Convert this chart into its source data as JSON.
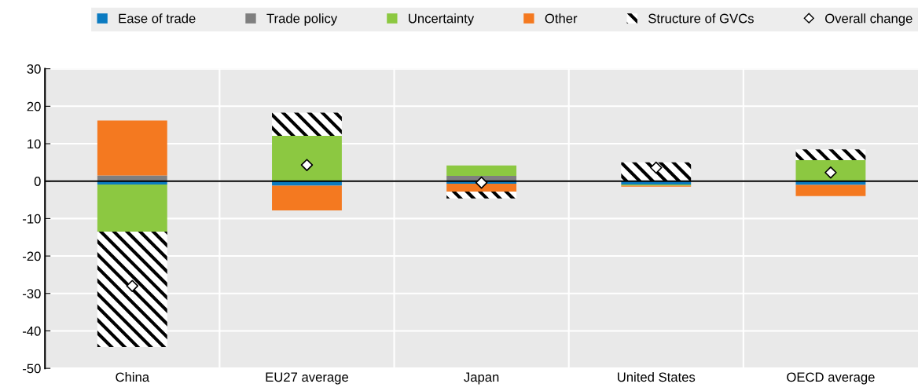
{
  "chart_data": {
    "type": "bar",
    "stacked": true,
    "categories": [
      "China",
      "EU27 average",
      "Japan",
      "United States",
      "OECD average"
    ],
    "series": [
      {
        "name": "Ease of trade",
        "color": "#0b7bc1",
        "values": [
          -0.9,
          -1.2,
          -0.7,
          -0.9,
          -1.0
        ]
      },
      {
        "name": "Trade policy",
        "color": "#7f7f7f",
        "values": [
          1.5,
          0,
          1.4,
          0,
          0
        ]
      },
      {
        "name": "Uncertainty",
        "color": "#8cc841",
        "values": [
          -12.6,
          12.1,
          2.8,
          -0.3,
          5.6
        ]
      },
      {
        "name": "Other",
        "color": "#f47920",
        "values": [
          14.7,
          -6.6,
          -2.1,
          -0.3,
          -3.0
        ]
      },
      {
        "name": "Structure of GVCs",
        "color": "#000000",
        "values": [
          -30.8,
          6.2,
          -1.8,
          5.0,
          2.9
        ]
      },
      {
        "name": "Overall change",
        "type": "scatter",
        "marker": "diamond",
        "color": "#ffffff",
        "x": [
          "China",
          "EU27 average",
          "Japan",
          "United States",
          "OECD average"
        ],
        "values": [
          -28.0,
          4.3,
          -0.4,
          3.6,
          2.3
        ]
      }
    ],
    "ylim": [
      -50,
      30
    ],
    "yticks": [
      -50,
      -40,
      -30,
      -20,
      -10,
      0,
      10,
      20,
      30
    ],
    "grid": true,
    "legend": "top"
  }
}
